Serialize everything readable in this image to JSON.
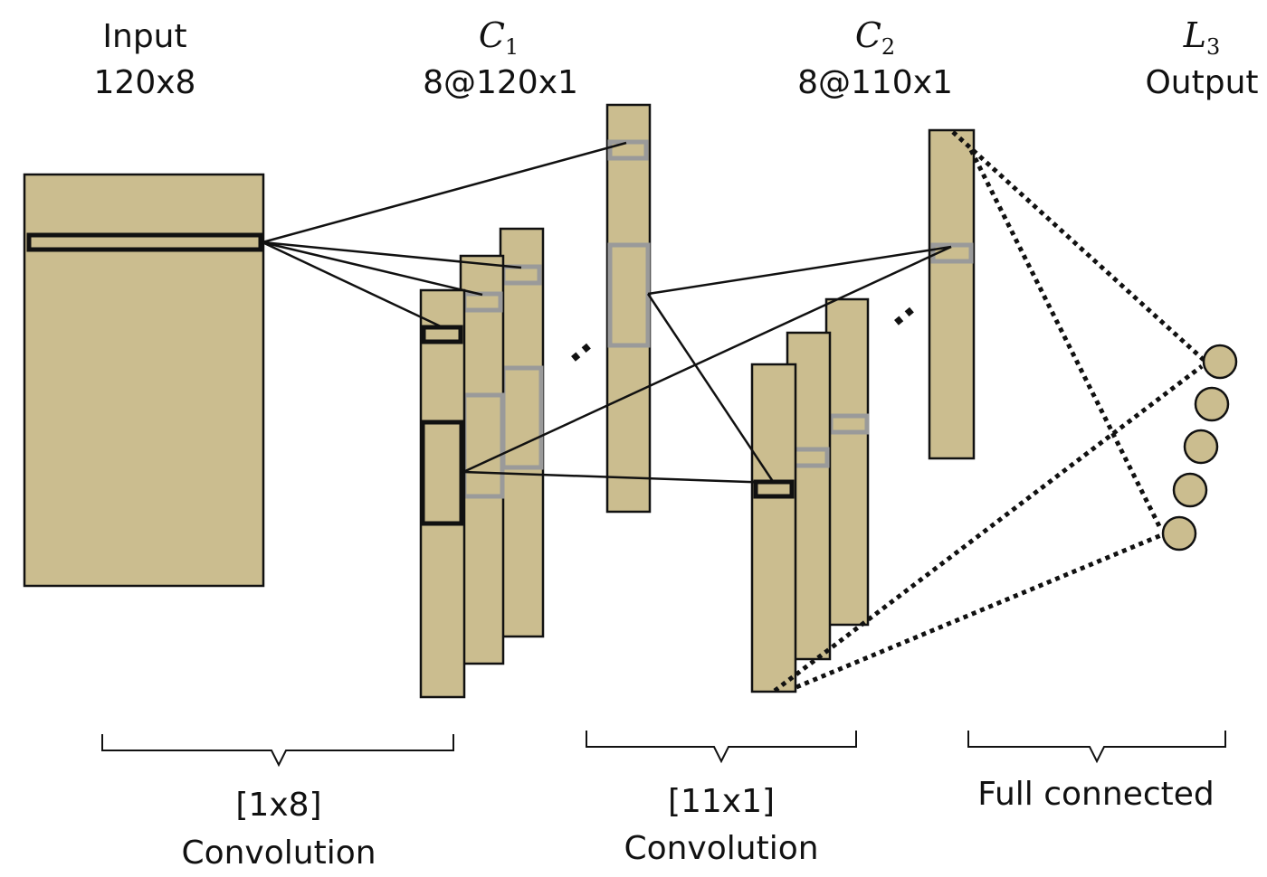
{
  "colors": {
    "feature_map": "#cbbd8f",
    "stroke": "#111111",
    "highlight_gray": "#9a9a9a",
    "background": "#ffffff"
  },
  "layers": {
    "input": {
      "title": "Input",
      "size": "120x8"
    },
    "c1": {
      "symbol": "C",
      "subscript": "1",
      "size": "8@120x1"
    },
    "c2": {
      "symbol": "C",
      "subscript": "2",
      "size": "8@110x1"
    },
    "l3": {
      "symbol": "L",
      "subscript": "3",
      "title": "Output"
    }
  },
  "operations": {
    "conv1": {
      "kernel": "[1x8]",
      "name": "Convolution"
    },
    "conv2": {
      "kernel": "[11x1]",
      "name": "Convolution"
    },
    "fc": {
      "name": "Full connected"
    }
  },
  "ellipsis": "..",
  "output_neurons": 5
}
